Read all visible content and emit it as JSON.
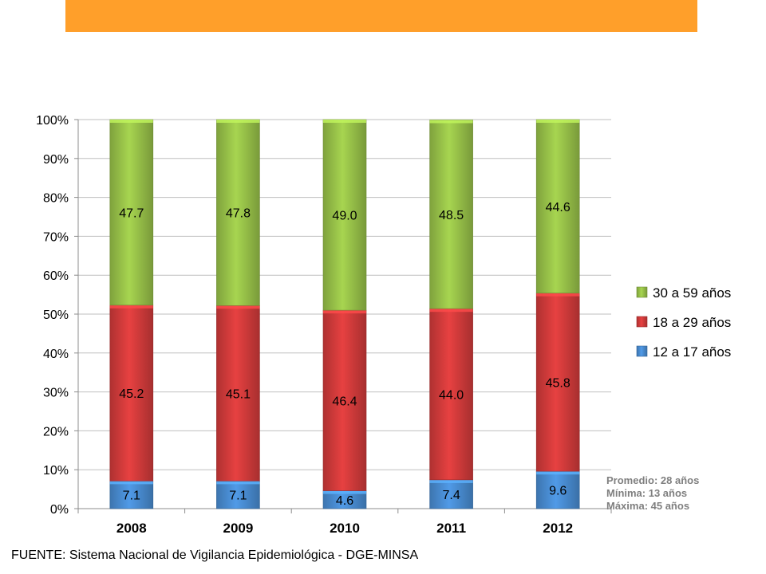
{
  "colors": {
    "banner": "#ff9f2a",
    "series_12_17": "#4a8fd6",
    "series_18_29": "#d63c3c",
    "series_30_59": "#9bc54a"
  },
  "chart_data": {
    "type": "bar",
    "stacked": true,
    "percent_stacked": true,
    "categories": [
      "2008",
      "2009",
      "2010",
      "2011",
      "2012"
    ],
    "series": [
      {
        "name": "12 a 17 años",
        "values": [
          7.1,
          7.1,
          4.6,
          7.4,
          9.6
        ],
        "labels": [
          "7.1",
          "7.1",
          "4.6",
          "7.4",
          "9.6"
        ],
        "color": "#4a8fd6"
      },
      {
        "name": "18 a 29 años",
        "values": [
          45.2,
          45.1,
          46.4,
          44.0,
          45.8
        ],
        "labels": [
          "45.2",
          "45.1",
          "46.4",
          "44.0",
          "45.8"
        ],
        "color": "#d63c3c"
      },
      {
        "name": "30 a 59 años",
        "values": [
          47.7,
          47.8,
          49.0,
          48.5,
          44.6
        ],
        "labels": [
          "47.7",
          "47.8",
          "49.0",
          "48.5",
          "44.6"
        ],
        "color": "#9bc54a"
      }
    ],
    "yticks": [
      "0%",
      "10%",
      "20%",
      "30%",
      "40%",
      "50%",
      "60%",
      "70%",
      "80%",
      "90%",
      "100%"
    ],
    "ylim": [
      0,
      100
    ],
    "grid": true,
    "legend_position": "right",
    "legend_order": [
      "30 a 59 años",
      "18 a 29 años",
      "12 a 17 años"
    ]
  },
  "stats": {
    "promedio": "Promedio: 28 años",
    "minima": "Mínima: 13 años",
    "maxima": "Máxima: 45 años"
  },
  "source": "FUENTE: Sistema Nacional de Vigilancia Epidemiológica - DGE-MINSA"
}
